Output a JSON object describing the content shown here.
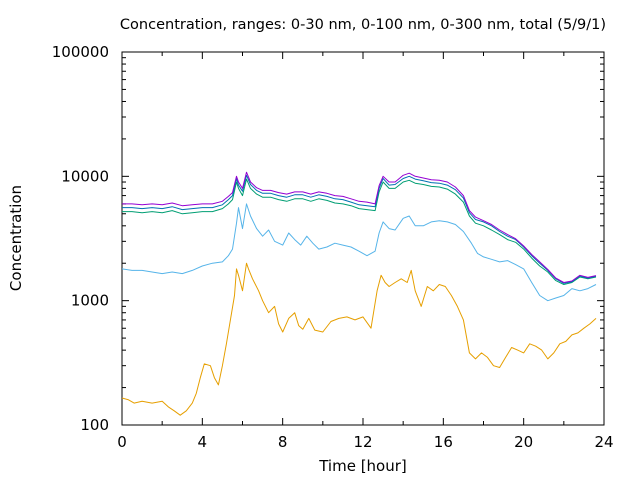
{
  "chart_data": {
    "type": "line",
    "title": "Concentration, ranges: 0-30 nm, 0-100 nm, 0-300 nm, total (5/9/1)",
    "xlabel": "Time [hour]",
    "ylabel": "Concentration",
    "xlim": [
      0,
      24
    ],
    "ylim": [
      100,
      100000
    ],
    "y_scale": "log",
    "x_ticks": [
      "0",
      "4",
      "8",
      "12",
      "16",
      "20",
      "24"
    ],
    "y_ticks": [
      "100",
      "1000",
      "10000",
      "100000"
    ],
    "grid": false,
    "legend": "none",
    "series": [
      {
        "color": "#e69f00",
        "x": [
          0,
          0.3,
          0.6,
          1.0,
          1.5,
          2.0,
          2.3,
          2.6,
          2.9,
          3.2,
          3.5,
          3.7,
          3.9,
          4.1,
          4.4,
          4.6,
          4.8,
          5.0,
          5.2,
          5.4,
          5.6,
          5.7,
          5.8,
          6.0,
          6.2,
          6.3,
          6.5,
          6.8,
          7.0,
          7.3,
          7.6,
          7.8,
          8.0,
          8.3,
          8.6,
          8.8,
          9.0,
          9.3,
          9.6,
          10.0,
          10.4,
          10.8,
          11.2,
          11.6,
          12.0,
          12.4,
          12.7,
          12.9,
          13.1,
          13.3,
          13.6,
          13.9,
          14.2,
          14.4,
          14.6,
          14.9,
          15.2,
          15.5,
          15.8,
          16.1,
          16.4,
          16.7,
          17.0,
          17.3,
          17.6,
          17.9,
          18.2,
          18.5,
          18.8,
          19.1,
          19.4,
          19.7,
          20.0,
          20.3,
          20.6,
          20.9,
          21.2,
          21.5,
          21.8,
          22.1,
          22.4,
          22.7,
          23.0,
          23.3,
          23.6
        ],
        "values": [
          165,
          160,
          150,
          155,
          150,
          155,
          140,
          130,
          120,
          130,
          150,
          180,
          240,
          310,
          300,
          240,
          210,
          300,
          450,
          700,
          1100,
          1800,
          1600,
          1200,
          2000,
          1800,
          1500,
          1200,
          1000,
          800,
          900,
          650,
          560,
          720,
          800,
          630,
          590,
          720,
          580,
          560,
          680,
          720,
          740,
          700,
          740,
          600,
          1200,
          1600,
          1400,
          1300,
          1400,
          1500,
          1400,
          1750,
          1200,
          900,
          1300,
          1200,
          1350,
          1300,
          1100,
          900,
          700,
          380,
          340,
          380,
          350,
          300,
          290,
          350,
          420,
          400,
          380,
          450,
          430,
          400,
          340,
          380,
          450,
          470,
          530,
          550,
          600,
          650,
          720
        ]
      },
      {
        "color": "#56b4e9",
        "x": [
          0,
          0.5,
          1.0,
          1.5,
          2.0,
          2.5,
          3.0,
          3.5,
          4.0,
          4.5,
          5.0,
          5.3,
          5.5,
          5.7,
          5.8,
          6.0,
          6.2,
          6.4,
          6.7,
          7.0,
          7.3,
          7.6,
          8.0,
          8.3,
          8.6,
          8.9,
          9.2,
          9.5,
          9.8,
          10.2,
          10.6,
          11.0,
          11.4,
          11.8,
          12.2,
          12.6,
          12.8,
          13.0,
          13.3,
          13.6,
          14.0,
          14.3,
          14.6,
          15.0,
          15.4,
          15.8,
          16.2,
          16.6,
          17.0,
          17.4,
          17.7,
          18.0,
          18.4,
          18.8,
          19.2,
          19.6,
          20.0,
          20.4,
          20.8,
          21.2,
          21.6,
          22.0,
          22.4,
          22.8,
          23.2,
          23.6
        ],
        "values": [
          1800,
          1750,
          1750,
          1700,
          1650,
          1700,
          1650,
          1750,
          1900,
          2000,
          2050,
          2300,
          2600,
          4200,
          5600,
          3800,
          6000,
          4800,
          3800,
          3300,
          3700,
          3000,
          2800,
          3500,
          3100,
          2800,
          3300,
          2900,
          2600,
          2700,
          2900,
          2800,
          2700,
          2500,
          2300,
          2500,
          3500,
          4300,
          3800,
          3700,
          4600,
          4800,
          4000,
          4000,
          4300,
          4400,
          4300,
          4100,
          3600,
          2900,
          2400,
          2250,
          2150,
          2050,
          2100,
          1950,
          1800,
          1400,
          1100,
          1000,
          1050,
          1100,
          1250,
          1200,
          1250,
          1350
        ]
      },
      {
        "color": "#009e73",
        "x": [
          0,
          0.5,
          1.0,
          1.5,
          2.0,
          2.5,
          3.0,
          3.5,
          4.0,
          4.5,
          5.0,
          5.3,
          5.5,
          5.7,
          5.8,
          6.0,
          6.2,
          6.4,
          6.7,
          7.0,
          7.4,
          7.8,
          8.2,
          8.6,
          9.0,
          9.4,
          9.8,
          10.2,
          10.6,
          11.0,
          11.4,
          11.8,
          12.2,
          12.6,
          12.8,
          13.0,
          13.3,
          13.6,
          14.0,
          14.3,
          14.6,
          15.0,
          15.4,
          15.8,
          16.2,
          16.6,
          17.0,
          17.3,
          17.6,
          18.0,
          18.4,
          18.8,
          19.2,
          19.6,
          20.0,
          20.4,
          20.8,
          21.2,
          21.6,
          22.0,
          22.4,
          22.8,
          23.2,
          23.6
        ],
        "values": [
          5200,
          5200,
          5100,
          5200,
          5100,
          5300,
          5000,
          5100,
          5200,
          5200,
          5500,
          6000,
          6500,
          9000,
          8000,
          7000,
          9500,
          8000,
          7200,
          6800,
          6800,
          6500,
          6300,
          6600,
          6600,
          6300,
          6600,
          6400,
          6100,
          6000,
          5800,
          5500,
          5400,
          5300,
          7500,
          9000,
          8000,
          8000,
          9000,
          9300,
          8800,
          8600,
          8300,
          8200,
          7900,
          7200,
          6200,
          4800,
          4200,
          4000,
          3700,
          3400,
          3100,
          2950,
          2600,
          2200,
          1900,
          1700,
          1450,
          1350,
          1400,
          1550,
          1500,
          1550
        ]
      },
      {
        "color": "#0072b2",
        "x": [
          0,
          0.5,
          1.0,
          1.5,
          2.0,
          2.5,
          3.0,
          3.5,
          4.0,
          4.5,
          5.0,
          5.3,
          5.5,
          5.7,
          5.8,
          6.0,
          6.2,
          6.4,
          6.7,
          7.0,
          7.4,
          7.8,
          8.2,
          8.6,
          9.0,
          9.4,
          9.8,
          10.2,
          10.6,
          11.0,
          11.4,
          11.8,
          12.2,
          12.6,
          12.8,
          13.0,
          13.3,
          13.6,
          14.0,
          14.3,
          14.6,
          15.0,
          15.4,
          15.8,
          16.2,
          16.6,
          17.0,
          17.3,
          17.6,
          18.0,
          18.4,
          18.8,
          19.2,
          19.6,
          20.0,
          20.4,
          20.8,
          21.2,
          21.6,
          22.0,
          22.4,
          22.8,
          23.2,
          23.6
        ],
        "values": [
          5600,
          5600,
          5500,
          5600,
          5500,
          5700,
          5400,
          5500,
          5600,
          5600,
          5900,
          6500,
          7000,
          9600,
          8500,
          7600,
          10200,
          8600,
          7700,
          7300,
          7300,
          7000,
          6800,
          7100,
          7100,
          6800,
          7100,
          6900,
          6600,
          6500,
          6200,
          5900,
          5800,
          5700,
          8000,
          9600,
          8500,
          8600,
          9600,
          10000,
          9500,
          9200,
          8900,
          8800,
          8500,
          7800,
          6700,
          5100,
          4500,
          4300,
          4000,
          3600,
          3300,
          3100,
          2700,
          2300,
          2000,
          1750,
          1500,
          1380,
          1420,
          1580,
          1520,
          1570
        ]
      },
      {
        "color": "#9400d3",
        "x": [
          0,
          0.5,
          1.0,
          1.5,
          2.0,
          2.5,
          3.0,
          3.5,
          4.0,
          4.5,
          5.0,
          5.3,
          5.5,
          5.7,
          5.8,
          6.0,
          6.2,
          6.4,
          6.7,
          7.0,
          7.4,
          7.8,
          8.2,
          8.6,
          9.0,
          9.4,
          9.8,
          10.2,
          10.6,
          11.0,
          11.4,
          11.8,
          12.2,
          12.6,
          12.8,
          13.0,
          13.3,
          13.6,
          14.0,
          14.3,
          14.6,
          15.0,
          15.4,
          15.8,
          16.2,
          16.6,
          17.0,
          17.3,
          17.6,
          18.0,
          18.4,
          18.8,
          19.2,
          19.6,
          20.0,
          20.4,
          20.8,
          21.2,
          21.6,
          22.0,
          22.4,
          22.8,
          23.2,
          23.6
        ],
        "values": [
          6000,
          6000,
          5900,
          6000,
          5900,
          6100,
          5800,
          5900,
          6000,
          6000,
          6300,
          6900,
          7400,
          10000,
          9000,
          8000,
          10800,
          9000,
          8100,
          7700,
          7700,
          7400,
          7200,
          7500,
          7500,
          7200,
          7500,
          7300,
          7000,
          6900,
          6600,
          6300,
          6200,
          6000,
          8400,
          10000,
          9000,
          9000,
          10200,
          10600,
          10000,
          9700,
          9400,
          9300,
          9000,
          8200,
          7000,
          5300,
          4700,
          4400,
          4100,
          3700,
          3400,
          3150,
          2750,
          2350,
          2050,
          1780,
          1520,
          1400,
          1440,
          1600,
          1540,
          1590
        ]
      }
    ]
  }
}
